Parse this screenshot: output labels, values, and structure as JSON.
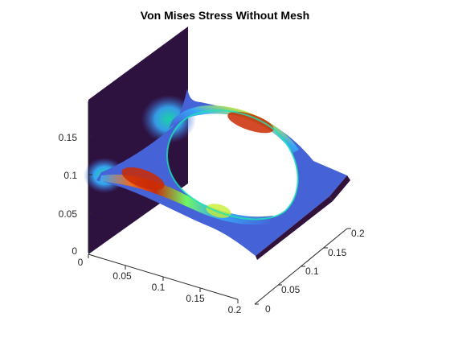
{
  "figure": {
    "title": "Von Mises Stress Without Mesh"
  },
  "axes": {
    "z_ticks": [
      "0",
      "0.05",
      "0.1",
      "0.15"
    ],
    "x_ticks": [
      "0",
      "0.05",
      "0.1",
      "0.15",
      "0.2"
    ],
    "y_ticks": [
      "0",
      "0.05",
      "0.1",
      "0.15",
      "0.2"
    ]
  },
  "colors": {
    "wall": "#2d1240",
    "axis": "#262626",
    "colormap": [
      "#30123b",
      "#4662d7",
      "#36aaf9",
      "#1ae4b6",
      "#72fe5e",
      "#c7ef34",
      "#faba39",
      "#f66b19",
      "#cb2a04",
      "#7a0403"
    ]
  }
}
